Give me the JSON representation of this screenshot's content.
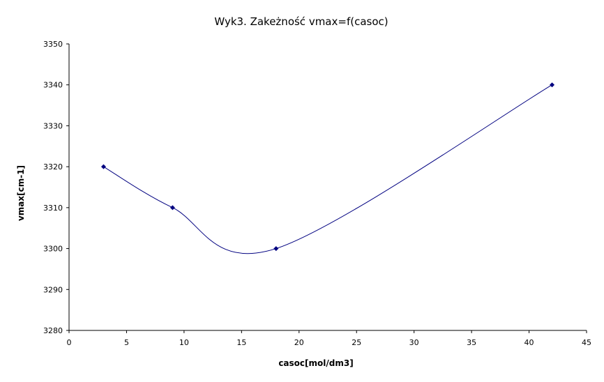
{
  "chart_data": {
    "type": "scatter",
    "title": "Wyk3. Zakeżność vmax=f(casoc)",
    "xlabel": "casoc[mol/dm3]",
    "ylabel": "vmax[cm-1]",
    "xlim": [
      0,
      45
    ],
    "ylim": [
      3280,
      3350
    ],
    "x_ticks": [
      "0",
      "5",
      "10",
      "15",
      "20",
      "25",
      "30",
      "35",
      "40",
      "45"
    ],
    "y_ticks": [
      "3280",
      "3290",
      "3300",
      "3310",
      "3320",
      "3330",
      "3340",
      "3350"
    ],
    "grid": false,
    "legend": "none",
    "smoothed_line": true,
    "series": [
      {
        "x": [
          3,
          9,
          18,
          42
        ],
        "y": [
          3320,
          3310,
          3300,
          3340
        ],
        "color": "#000080"
      }
    ]
  }
}
